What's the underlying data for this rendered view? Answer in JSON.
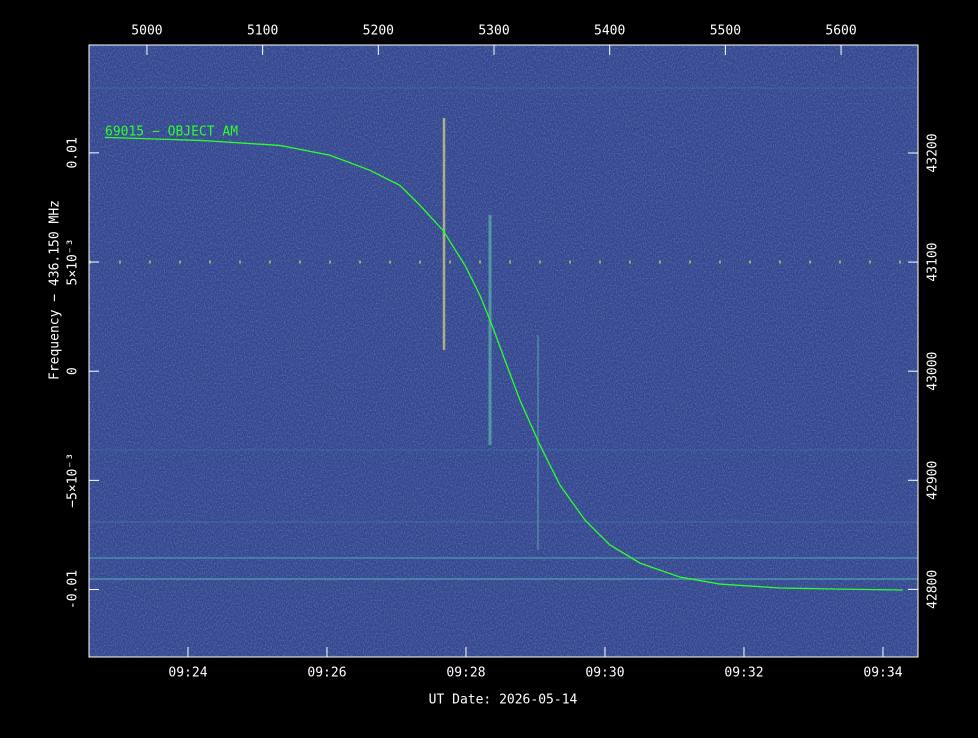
{
  "chart_data": {
    "type": "line",
    "xlabel": "UT Date: 2026-05-14",
    "ylabel": "Frequency − 436.150 MHz",
    "xlim": [
      562.576,
      574.504
    ],
    "xticks": [
      {
        "value": 564,
        "label": "09:24"
      },
      {
        "value": 566,
        "label": "09:26"
      },
      {
        "value": 568,
        "label": "09:28"
      },
      {
        "value": 570,
        "label": "09:30"
      },
      {
        "value": 572,
        "label": "09:32"
      },
      {
        "value": 574,
        "label": "09:34"
      }
    ],
    "x2lim": [
      4949.9,
      5666.5
    ],
    "x2ticks": [
      5000,
      5100,
      5200,
      5300,
      5400,
      5500,
      5600
    ],
    "ylim": [
      -0.01309,
      0.01494
    ],
    "yticks": [
      -0.01,
      {
        "value": -0.005,
        "label": "−5×10⁻³"
      },
      0,
      {
        "value": 0.005,
        "label": "5×10⁻³"
      },
      0.01
    ],
    "y2lim": [
      42738,
      43299
    ],
    "y2ticks": [
      42800,
      42900,
      43000,
      43100,
      43200
    ],
    "series": [
      {
        "name": "69015 − OBJECT AM",
        "color": "#2bff2b",
        "x": [
          562.806,
          564.173,
          565.324,
          566.043,
          566.619,
          567.05,
          567.338,
          567.669,
          567.986,
          568.201,
          568.374,
          568.561,
          568.777,
          569.065,
          569.353,
          569.712,
          570.072,
          570.504,
          571.079,
          571.655,
          572.518,
          573.381,
          574.288
        ],
        "values": [
          0.01071,
          0.01057,
          0.01034,
          0.00989,
          0.0092,
          0.00851,
          0.0076,
          0.00645,
          0.00485,
          0.00348,
          0.00211,
          0.0005,
          -0.00133,
          -0.00339,
          -0.00522,
          -0.00682,
          -0.00796,
          -0.00879,
          -0.00943,
          -0.00975,
          -0.00993,
          -0.00998,
          -0.01002
        ]
      }
    ]
  }
}
